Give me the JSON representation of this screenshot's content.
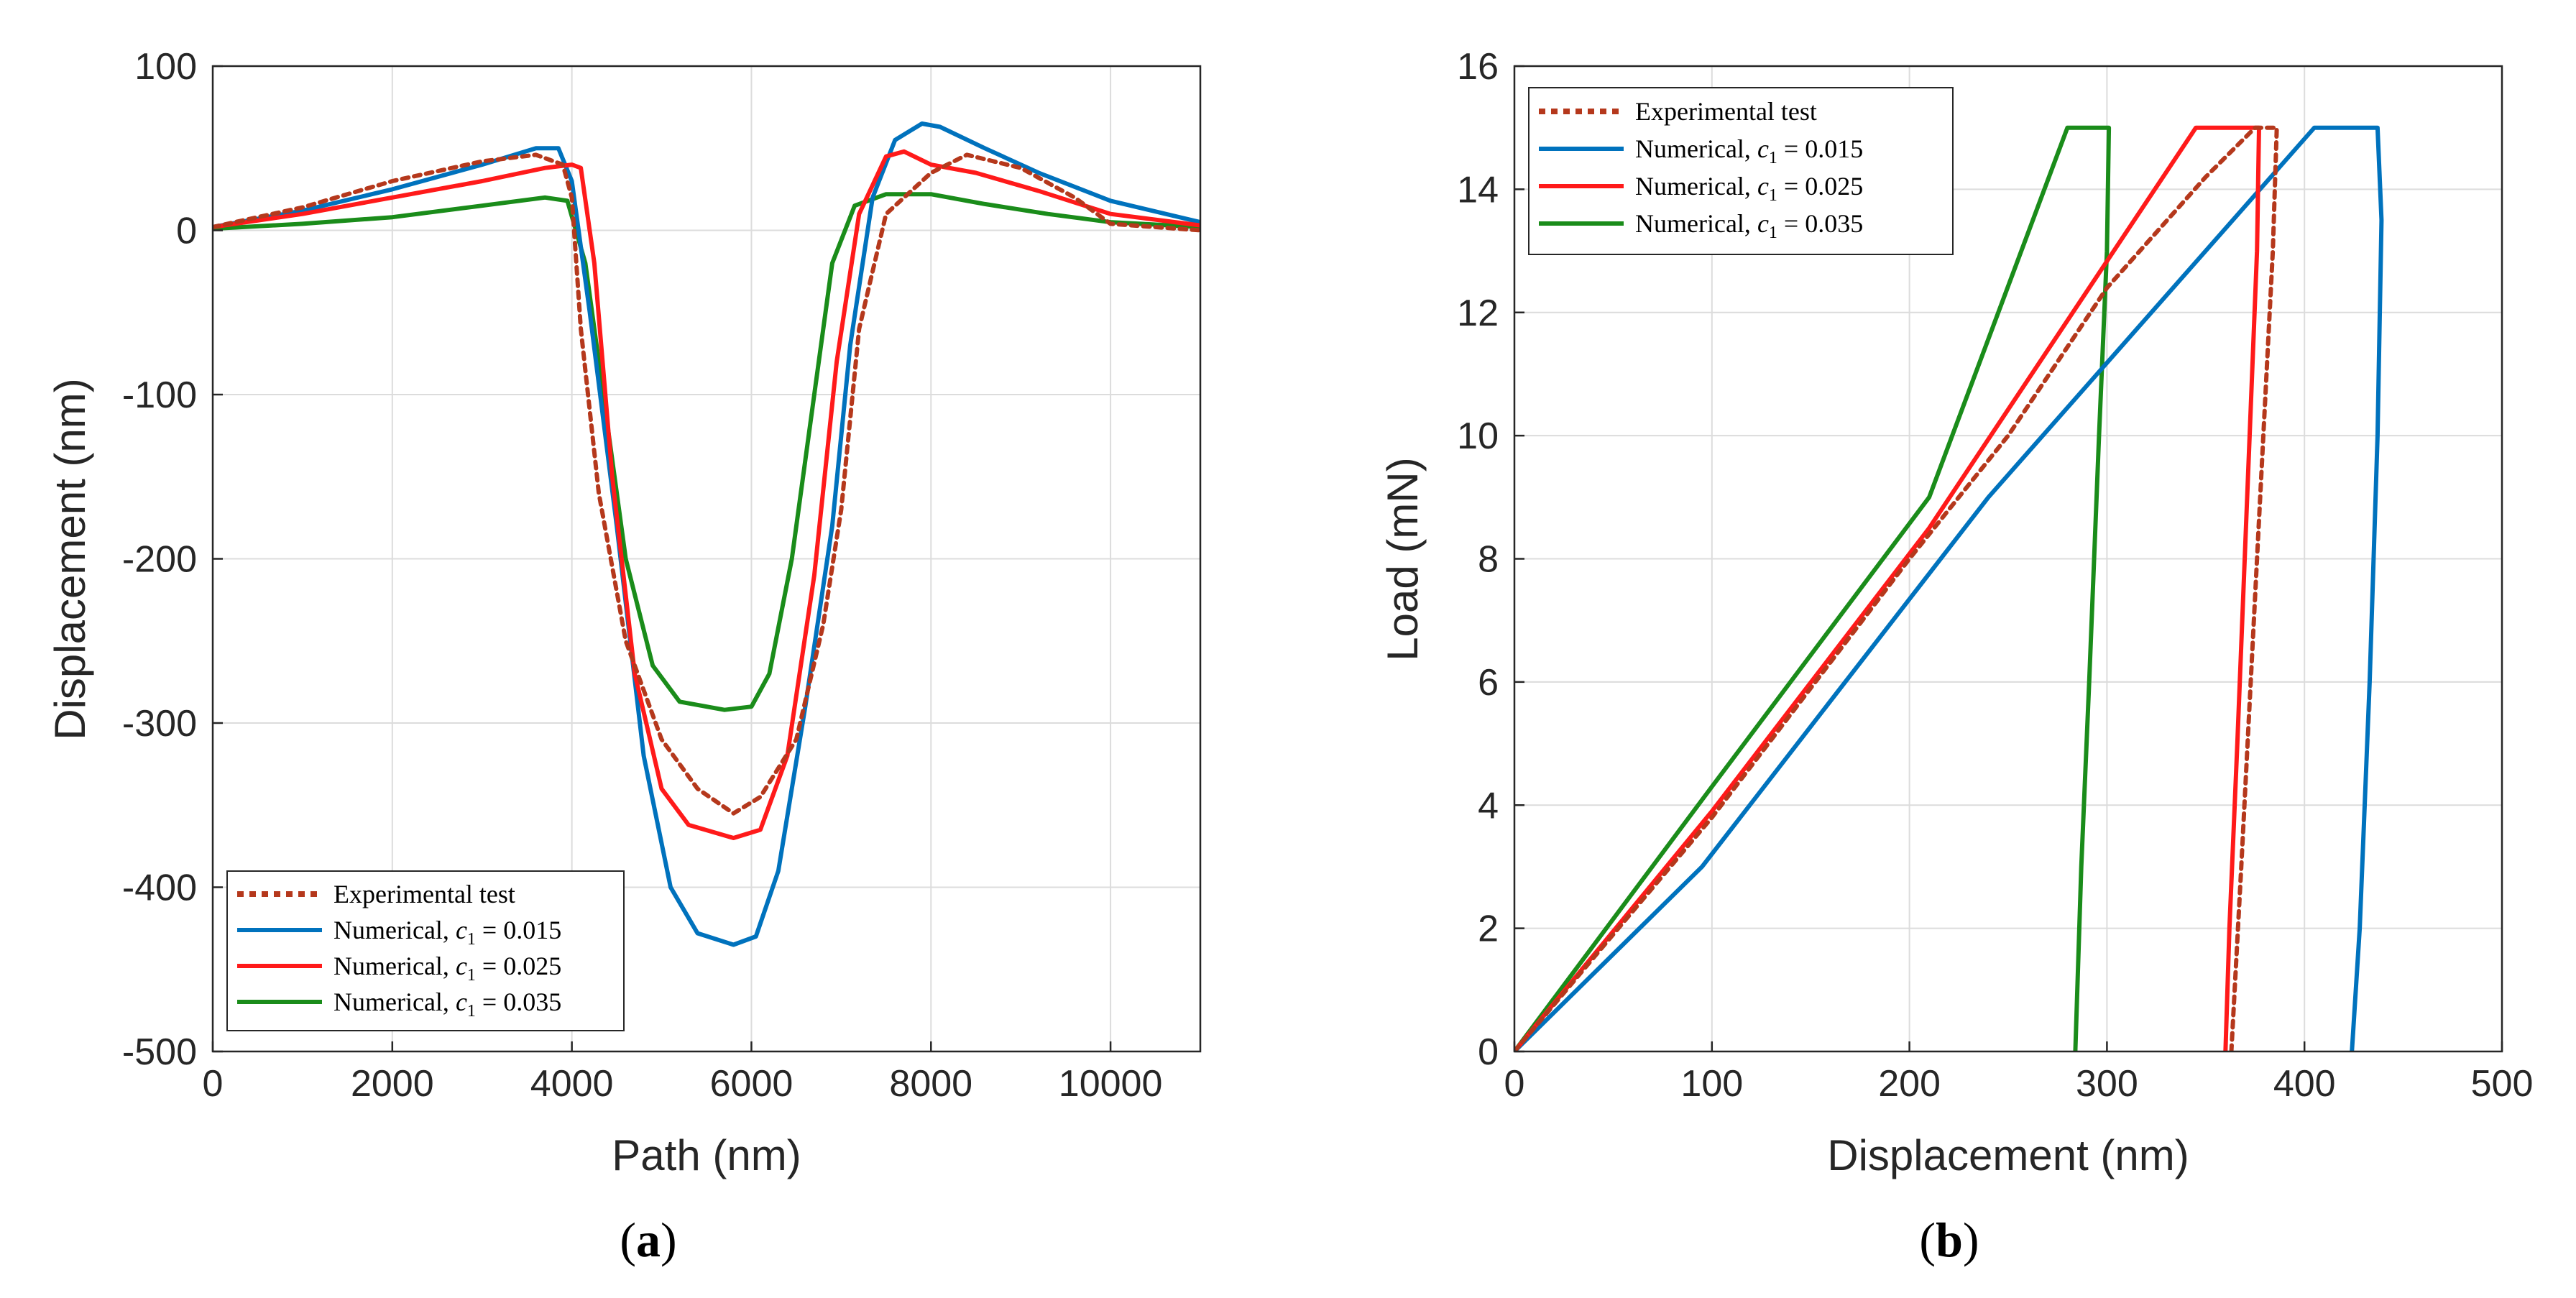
{
  "colors": {
    "experimental": "#b5381c",
    "c015": "#0072bd",
    "c025": "#ff1a1a",
    "c035": "#1a8c1a"
  },
  "chart_data": [
    {
      "id": "a",
      "type": "line",
      "panel_label": {
        "open": "(",
        "letter": "a",
        "close": ")"
      },
      "xlabel": "Path (nm)",
      "ylabel": "Displacement (nm)",
      "xlim": [
        0,
        11000
      ],
      "ylim": [
        -500,
        100
      ],
      "xticks": [
        0,
        2000,
        4000,
        6000,
        8000,
        10000
      ],
      "yticks": [
        -500,
        -400,
        -300,
        -200,
        -100,
        0,
        100
      ],
      "grid": true,
      "legend_position": "bottom-left",
      "series": [
        {
          "key": "experimental",
          "name": "Experimental test",
          "dashed": true,
          "points": [
            [
              0,
              2
            ],
            [
              1000,
              14
            ],
            [
              2000,
              30
            ],
            [
              3000,
              42
            ],
            [
              3600,
              46
            ],
            [
              3900,
              40
            ],
            [
              4000,
              20
            ],
            [
              4100,
              -60
            ],
            [
              4300,
              -160
            ],
            [
              4600,
              -250
            ],
            [
              5000,
              -310
            ],
            [
              5400,
              -340
            ],
            [
              5800,
              -355
            ],
            [
              6100,
              -345
            ],
            [
              6500,
              -310
            ],
            [
              6800,
              -240
            ],
            [
              7000,
              -170
            ],
            [
              7200,
              -60
            ],
            [
              7500,
              10
            ],
            [
              8000,
              35
            ],
            [
              8400,
              46
            ],
            [
              9000,
              38
            ],
            [
              9600,
              20
            ],
            [
              10000,
              4
            ],
            [
              11000,
              0
            ]
          ]
        },
        {
          "key": "c015",
          "name": "Numerical, c1 = 0.015",
          "label_main": "Numerical, ",
          "label_var": "c",
          "label_sub": "1",
          "label_rest": " = 0.015",
          "points": [
            [
              0,
              2
            ],
            [
              1000,
              12
            ],
            [
              2000,
              25
            ],
            [
              3000,
              40
            ],
            [
              3600,
              50
            ],
            [
              3850,
              50
            ],
            [
              4000,
              30
            ],
            [
              4200,
              -50
            ],
            [
              4500,
              -180
            ],
            [
              4800,
              -320
            ],
            [
              5100,
              -400
            ],
            [
              5400,
              -428
            ],
            [
              5800,
              -435
            ],
            [
              6050,
              -430
            ],
            [
              6300,
              -390
            ],
            [
              6600,
              -290
            ],
            [
              6900,
              -180
            ],
            [
              7100,
              -70
            ],
            [
              7350,
              20
            ],
            [
              7600,
              55
            ],
            [
              7900,
              65
            ],
            [
              8100,
              63
            ],
            [
              8600,
              50
            ],
            [
              9200,
              35
            ],
            [
              10000,
              18
            ],
            [
              11000,
              5
            ]
          ]
        },
        {
          "key": "c025",
          "name": "Numerical, c1 = 0.025",
          "label_main": "Numerical, ",
          "label_var": "c",
          "label_sub": "1",
          "label_rest": " = 0.025",
          "points": [
            [
              0,
              2
            ],
            [
              1000,
              10
            ],
            [
              2000,
              20
            ],
            [
              3000,
              30
            ],
            [
              3700,
              38
            ],
            [
              4000,
              40
            ],
            [
              4100,
              38
            ],
            [
              4250,
              -20
            ],
            [
              4450,
              -150
            ],
            [
              4700,
              -270
            ],
            [
              5000,
              -340
            ],
            [
              5300,
              -362
            ],
            [
              5800,
              -370
            ],
            [
              6100,
              -365
            ],
            [
              6400,
              -320
            ],
            [
              6700,
              -210
            ],
            [
              6950,
              -80
            ],
            [
              7200,
              10
            ],
            [
              7500,
              45
            ],
            [
              7700,
              48
            ],
            [
              8000,
              40
            ],
            [
              8500,
              35
            ],
            [
              9200,
              24
            ],
            [
              10000,
              10
            ],
            [
              11000,
              3
            ]
          ]
        },
        {
          "key": "c035",
          "name": "Numerical, c1 = 0.035",
          "label_main": "Numerical, ",
          "label_var": "c",
          "label_sub": "1",
          "label_rest": " = 0.035",
          "points": [
            [
              0,
              1
            ],
            [
              1000,
              4
            ],
            [
              2000,
              8
            ],
            [
              3000,
              15
            ],
            [
              3700,
              20
            ],
            [
              3950,
              18
            ],
            [
              4150,
              -20
            ],
            [
              4350,
              -100
            ],
            [
              4600,
              -200
            ],
            [
              4900,
              -265
            ],
            [
              5200,
              -287
            ],
            [
              5700,
              -292
            ],
            [
              6000,
              -290
            ],
            [
              6200,
              -270
            ],
            [
              6450,
              -200
            ],
            [
              6700,
              -100
            ],
            [
              6900,
              -20
            ],
            [
              7150,
              15
            ],
            [
              7500,
              22
            ],
            [
              8000,
              22
            ],
            [
              8600,
              16
            ],
            [
              9300,
              10
            ],
            [
              10000,
              5
            ],
            [
              11000,
              2
            ]
          ]
        }
      ]
    },
    {
      "id": "b",
      "type": "line",
      "panel_label": {
        "open": "(",
        "letter": "b",
        "close": ")"
      },
      "xlabel": "Displacement (nm)",
      "ylabel": "Load (mN)",
      "xlim": [
        0,
        500
      ],
      "ylim": [
        0,
        16
      ],
      "xticks": [
        0,
        100,
        200,
        300,
        400,
        500
      ],
      "yticks": [
        0,
        2,
        4,
        6,
        8,
        10,
        12,
        14,
        16
      ],
      "grid": true,
      "legend_position": "top-left",
      "series": [
        {
          "key": "experimental",
          "name": "Experimental test",
          "dashed": true,
          "points": [
            [
              0,
              0
            ],
            [
              100,
              3.8
            ],
            [
              200,
              8.0
            ],
            [
              250,
              10.0
            ],
            [
              300,
              12.4
            ],
            [
              350,
              14.2
            ],
            [
              375,
              15.0
            ],
            [
              386,
              15.0
            ],
            [
              384,
              13.0
            ],
            [
              376,
              8.0
            ],
            [
              368,
              3.0
            ],
            [
              363,
              0
            ]
          ]
        },
        {
          "key": "c015",
          "name": "Numerical, c1 = 0.015",
          "label_main": "Numerical, ",
          "label_var": "c",
          "label_sub": "1",
          "label_rest": " = 0.015",
          "points": [
            [
              0,
              0
            ],
            [
              95,
              3.0
            ],
            [
              240,
              9.0
            ],
            [
              405,
              15.0
            ],
            [
              437,
              15.0
            ],
            [
              439,
              13.5
            ],
            [
              437,
              10.0
            ],
            [
              433,
              6.0
            ],
            [
              428,
              2.0
            ],
            [
              424,
              0
            ]
          ]
        },
        {
          "key": "c025",
          "name": "Numerical, c1 = 0.025",
          "label_main": "Numerical, ",
          "label_var": "c",
          "label_sub": "1",
          "label_rest": " = 0.025",
          "points": [
            [
              0,
              0
            ],
            [
              100,
              3.9
            ],
            [
              210,
              8.5
            ],
            [
              345,
              15.0
            ],
            [
              377,
              15.0
            ],
            [
              376,
              13.0
            ],
            [
              371,
              9.0
            ],
            [
              366,
              5.0
            ],
            [
              362,
              2.0
            ],
            [
              360,
              0
            ]
          ]
        },
        {
          "key": "c035",
          "name": "Numerical, c1 = 0.035",
          "label_main": "Numerical, ",
          "label_var": "c",
          "label_sub": "1",
          "label_rest": " = 0.035",
          "points": [
            [
              0,
              0
            ],
            [
              100,
              4.3
            ],
            [
              210,
              9.0
            ],
            [
              280,
              15.0
            ],
            [
              301,
              15.0
            ],
            [
              300,
              13.0
            ],
            [
              296,
              10.0
            ],
            [
              291,
              6.0
            ],
            [
              287,
              3.0
            ],
            [
              284,
              0
            ]
          ]
        }
      ]
    }
  ]
}
